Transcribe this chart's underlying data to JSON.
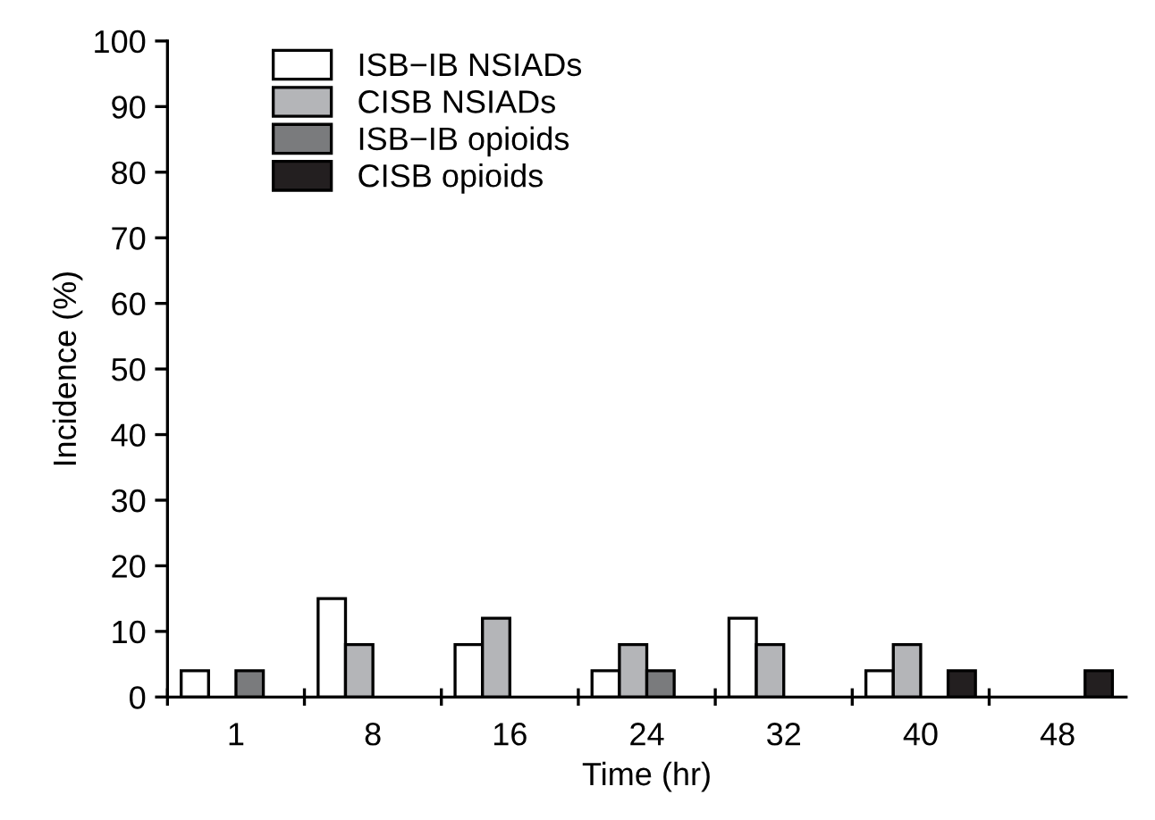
{
  "chart_data": {
    "type": "bar",
    "xlabel": "Time (hr)",
    "ylabel": "Incidence (%)",
    "categories": [
      "1",
      "8",
      "16",
      "24",
      "32",
      "40",
      "48"
    ],
    "series": [
      {
        "name": "ISB−IB NSIADs",
        "color": "#ffffff",
        "values": [
          4,
          15,
          8,
          4,
          12,
          4,
          null
        ]
      },
      {
        "name": "CISB NSIADs",
        "color": "#b4b5b8",
        "values": [
          null,
          8,
          12,
          8,
          8,
          8,
          null
        ]
      },
      {
        "name": "ISB−IB opioids",
        "color": "#7a7b7d",
        "values": [
          4,
          null,
          null,
          4,
          null,
          null,
          null
        ]
      },
      {
        "name": "CISB opioids",
        "color": "#231f20",
        "values": [
          null,
          null,
          null,
          null,
          null,
          4,
          4
        ]
      }
    ],
    "ylim": [
      0,
      100
    ],
    "yticks": [
      0,
      10,
      20,
      30,
      40,
      50,
      60,
      70,
      80,
      90,
      100
    ],
    "grid": false,
    "legend": "top left"
  }
}
